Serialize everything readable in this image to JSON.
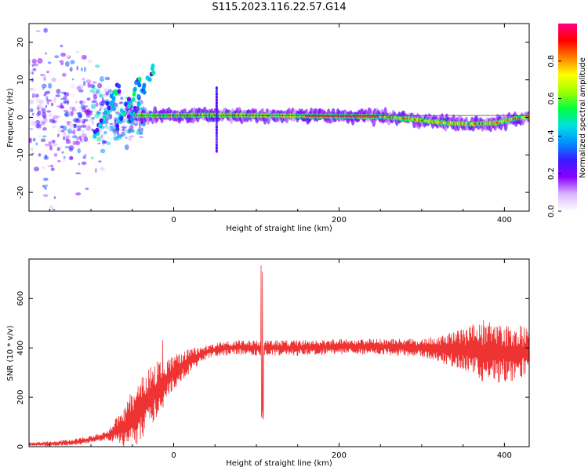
{
  "title": "S115.2023.116.22.57.G14",
  "chart_data": [
    {
      "type": "heatmap",
      "xlabel": "Height of straight line (km)",
      "ylabel": "Frequency (Hz)",
      "xlim": [
        -175,
        430
      ],
      "ylim": [
        -25,
        25
      ],
      "xticks": [
        0,
        200,
        400
      ],
      "yticks": [
        -20,
        -10,
        0,
        10,
        20
      ],
      "colorbar": {
        "label": "Normalized spectral amplitude",
        "range": [
          0,
          1
        ],
        "ticks": [
          "0.0",
          "0.2",
          "0.4",
          "0.6",
          "0.8"
        ],
        "tick_values": [
          0.0,
          0.2,
          0.4,
          0.6,
          0.8
        ],
        "colormap": [
          "#ffffff",
          "#d9b8ff",
          "#8a00ff",
          "#3a1aff",
          "#0090ff",
          "#00e0e0",
          "#00ff40",
          "#a0ff00",
          "#ffff00",
          "#ff8000",
          "#ff0000",
          "#ff0080"
        ]
      },
      "ridge": [
        {
          "x": -45,
          "y": 0.5
        },
        {
          "x": 0,
          "y": 0.5
        },
        {
          "x": 50,
          "y": 0.6
        },
        {
          "x": 100,
          "y": 0.5
        },
        {
          "x": 150,
          "y": 0.4
        },
        {
          "x": 200,
          "y": 0.3
        },
        {
          "x": 250,
          "y": 0.2
        },
        {
          "x": 280,
          "y": -0.3
        },
        {
          "x": 300,
          "y": -0.8
        },
        {
          "x": 330,
          "y": -1.5
        },
        {
          "x": 360,
          "y": -1.8
        },
        {
          "x": 390,
          "y": -1.5
        },
        {
          "x": 410,
          "y": -0.5
        },
        {
          "x": 430,
          "y": 0.2
        }
      ],
      "spike": {
        "x": 52,
        "y_range": [
          -9,
          8
        ]
      }
    },
    {
      "type": "line",
      "xlabel": "Height of straight line (km)",
      "ylabel": "SNR (10 * v/v)",
      "xlim": [
        -175,
        430
      ],
      "ylim": [
        0,
        760
      ],
      "xticks": [
        0,
        200,
        400
      ],
      "yticks": [
        0,
        200,
        400,
        600
      ],
      "color": "#ee3333",
      "trend": [
        {
          "x": -175,
          "y": 10
        },
        {
          "x": -150,
          "y": 12
        },
        {
          "x": -120,
          "y": 18
        },
        {
          "x": -100,
          "y": 30
        },
        {
          "x": -80,
          "y": 45
        },
        {
          "x": -60,
          "y": 80
        },
        {
          "x": -40,
          "y": 150
        },
        {
          "x": -20,
          "y": 230
        },
        {
          "x": 0,
          "y": 300
        },
        {
          "x": 20,
          "y": 350
        },
        {
          "x": 40,
          "y": 385
        },
        {
          "x": 60,
          "y": 398
        },
        {
          "x": 80,
          "y": 402
        },
        {
          "x": 100,
          "y": 400
        },
        {
          "x": 150,
          "y": 400
        },
        {
          "x": 200,
          "y": 405
        },
        {
          "x": 250,
          "y": 405
        },
        {
          "x": 300,
          "y": 400
        },
        {
          "x": 330,
          "y": 395
        },
        {
          "x": 360,
          "y": 390
        },
        {
          "x": 400,
          "y": 380
        },
        {
          "x": 430,
          "y": 385
        }
      ],
      "noise_amplitude": [
        {
          "x": -175,
          "y": 8
        },
        {
          "x": -80,
          "y": 20
        },
        {
          "x": -45,
          "y": 150
        },
        {
          "x": -25,
          "y": 140
        },
        {
          "x": 0,
          "y": 80
        },
        {
          "x": 40,
          "y": 30
        },
        {
          "x": 100,
          "y": 35
        },
        {
          "x": 200,
          "y": 35
        },
        {
          "x": 300,
          "y": 40
        },
        {
          "x": 340,
          "y": 80
        },
        {
          "x": 380,
          "y": 150
        },
        {
          "x": 420,
          "y": 120
        },
        {
          "x": 430,
          "y": 100
        }
      ],
      "features": [
        {
          "x": 107,
          "y_max": 740,
          "y_min": 110
        },
        {
          "x": -12,
          "y_max": 460
        }
      ]
    }
  ]
}
